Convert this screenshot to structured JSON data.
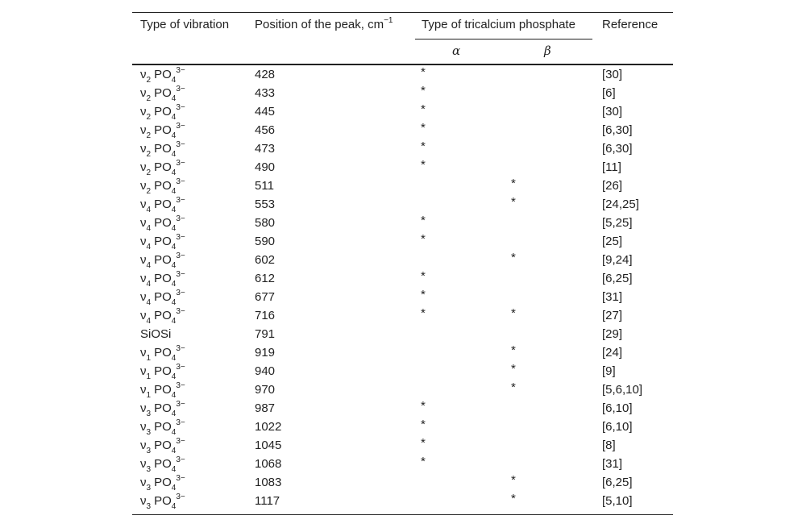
{
  "header": {
    "vibration": "Type of vibration",
    "position": {
      "text": "Position of the peak, cm",
      "sup": "−1"
    },
    "phosphate": "Type of tricalcium phosphate",
    "alpha": "α",
    "beta": "β",
    "reference": "Reference"
  },
  "table": {
    "rows": [
      {
        "vibration": [
          {
            "t": "ν"
          },
          {
            "t": "2",
            "pos": "sub"
          },
          {
            "t": "PO",
            "gap": true
          },
          {
            "t": "4",
            "pos": "sub"
          },
          {
            "t": "3−",
            "pos": "sup"
          }
        ],
        "peak": 428,
        "alpha": "*",
        "beta": null,
        "ref": "[30]"
      },
      {
        "vibration": [
          {
            "t": "ν"
          },
          {
            "t": "2",
            "pos": "sub"
          },
          {
            "t": "PO",
            "gap": true
          },
          {
            "t": "4",
            "pos": "sub"
          },
          {
            "t": "3−",
            "pos": "sup"
          }
        ],
        "peak": 433,
        "alpha": "*",
        "beta": null,
        "ref": "[6]"
      },
      {
        "vibration": [
          {
            "t": "ν"
          },
          {
            "t": "2",
            "pos": "sub"
          },
          {
            "t": "PO",
            "gap": true
          },
          {
            "t": "4",
            "pos": "sub"
          },
          {
            "t": "3−",
            "pos": "sup"
          }
        ],
        "peak": 445,
        "alpha": "*",
        "beta": null,
        "ref": "[30]"
      },
      {
        "vibration": [
          {
            "t": "ν"
          },
          {
            "t": "2",
            "pos": "sub"
          },
          {
            "t": "PO",
            "gap": true
          },
          {
            "t": "4",
            "pos": "sub"
          },
          {
            "t": "3−",
            "pos": "sup"
          }
        ],
        "peak": 456,
        "alpha": "*",
        "beta": null,
        "ref": "[6,30]"
      },
      {
        "vibration": [
          {
            "t": "ν"
          },
          {
            "t": "2",
            "pos": "sub"
          },
          {
            "t": "PO",
            "gap": true
          },
          {
            "t": "4",
            "pos": "sub"
          },
          {
            "t": "3−",
            "pos": "sup"
          }
        ],
        "peak": 473,
        "alpha": "*",
        "beta": null,
        "ref": "[6,30]"
      },
      {
        "vibration": [
          {
            "t": "ν"
          },
          {
            "t": "2",
            "pos": "sub"
          },
          {
            "t": "PO",
            "gap": true
          },
          {
            "t": "4",
            "pos": "sub"
          },
          {
            "t": "3−",
            "pos": "sup"
          }
        ],
        "peak": 490,
        "alpha": "*",
        "beta": null,
        "ref": "[11]"
      },
      {
        "vibration": [
          {
            "t": "ν"
          },
          {
            "t": "2",
            "pos": "sub"
          },
          {
            "t": "PO",
            "gap": true
          },
          {
            "t": "4",
            "pos": "sub"
          },
          {
            "t": "3−",
            "pos": "sup"
          }
        ],
        "peak": 511,
        "alpha": null,
        "beta": "*",
        "ref": "[26]"
      },
      {
        "vibration": [
          {
            "t": "ν"
          },
          {
            "t": "4",
            "pos": "sub"
          },
          {
            "t": "PO",
            "gap": true
          },
          {
            "t": "4",
            "pos": "sub"
          },
          {
            "t": "3−",
            "pos": "sup"
          }
        ],
        "peak": 553,
        "alpha": null,
        "beta": "*",
        "ref": "[24,25]"
      },
      {
        "vibration": [
          {
            "t": "ν"
          },
          {
            "t": "4",
            "pos": "sub"
          },
          {
            "t": "PO",
            "gap": true
          },
          {
            "t": "4",
            "pos": "sub"
          },
          {
            "t": "3−",
            "pos": "sup"
          }
        ],
        "peak": 580,
        "alpha": "*",
        "beta": null,
        "ref": "[5,25]"
      },
      {
        "vibration": [
          {
            "t": "ν"
          },
          {
            "t": "4",
            "pos": "sub"
          },
          {
            "t": "PO",
            "gap": true
          },
          {
            "t": "4",
            "pos": "sub"
          },
          {
            "t": "3−",
            "pos": "sup"
          }
        ],
        "peak": 590,
        "alpha": "*",
        "beta": null,
        "ref": "[25]"
      },
      {
        "vibration": [
          {
            "t": "ν"
          },
          {
            "t": "4",
            "pos": "sub"
          },
          {
            "t": "PO",
            "gap": true
          },
          {
            "t": "4",
            "pos": "sub"
          },
          {
            "t": "3−",
            "pos": "sup"
          }
        ],
        "peak": 602,
        "alpha": null,
        "beta": "*",
        "ref": "[9,24]"
      },
      {
        "vibration": [
          {
            "t": "ν"
          },
          {
            "t": "4",
            "pos": "sub"
          },
          {
            "t": "PO",
            "gap": true
          },
          {
            "t": "4",
            "pos": "sub"
          },
          {
            "t": "3−",
            "pos": "sup"
          }
        ],
        "peak": 612,
        "alpha": "*",
        "beta": null,
        "ref": "[6,25]"
      },
      {
        "vibration": [
          {
            "t": "ν"
          },
          {
            "t": "4",
            "pos": "sub"
          },
          {
            "t": "PO",
            "gap": true
          },
          {
            "t": "4",
            "pos": "sub"
          },
          {
            "t": "3−",
            "pos": "sup"
          }
        ],
        "peak": 677,
        "alpha": "*",
        "beta": null,
        "ref": "[31]"
      },
      {
        "vibration": [
          {
            "t": "ν"
          },
          {
            "t": "4",
            "pos": "sub"
          },
          {
            "t": "PO",
            "gap": true
          },
          {
            "t": "4",
            "pos": "sub"
          },
          {
            "t": "3−",
            "pos": "sup"
          }
        ],
        "peak": 716,
        "alpha": "*",
        "beta": "*",
        "ref": "[27]"
      },
      {
        "vibration": [
          {
            "t": "SiOSi"
          }
        ],
        "peak": 791,
        "alpha": null,
        "beta": null,
        "ref": "[29]"
      },
      {
        "vibration": [
          {
            "t": "ν"
          },
          {
            "t": "1",
            "pos": "sub"
          },
          {
            "t": "PO",
            "gap": true
          },
          {
            "t": "4",
            "pos": "sub"
          },
          {
            "t": "3−",
            "pos": "sup"
          }
        ],
        "peak": 919,
        "alpha": null,
        "beta": "*",
        "ref": "[24]"
      },
      {
        "vibration": [
          {
            "t": "ν"
          },
          {
            "t": "1",
            "pos": "sub"
          },
          {
            "t": "PO",
            "gap": true
          },
          {
            "t": "4",
            "pos": "sub"
          },
          {
            "t": "3−",
            "pos": "sup"
          }
        ],
        "peak": 940,
        "alpha": null,
        "beta": "*",
        "ref": "[9]"
      },
      {
        "vibration": [
          {
            "t": "ν"
          },
          {
            "t": "1",
            "pos": "sub"
          },
          {
            "t": "PO",
            "gap": true
          },
          {
            "t": "4",
            "pos": "sub"
          },
          {
            "t": "3−",
            "pos": "sup"
          }
        ],
        "peak": 970,
        "alpha": null,
        "beta": "*",
        "ref": "[5,6,10]"
      },
      {
        "vibration": [
          {
            "t": "ν"
          },
          {
            "t": "3",
            "pos": "sub"
          },
          {
            "t": "PO",
            "gap": true
          },
          {
            "t": "4",
            "pos": "sub"
          },
          {
            "t": "3−",
            "pos": "sup"
          }
        ],
        "peak": 987,
        "alpha": "*",
        "beta": null,
        "ref": "[6,10]"
      },
      {
        "vibration": [
          {
            "t": "ν"
          },
          {
            "t": "3",
            "pos": "sub"
          },
          {
            "t": "PO",
            "gap": true
          },
          {
            "t": "4",
            "pos": "sub"
          },
          {
            "t": "3−",
            "pos": "sup"
          }
        ],
        "peak": 1022,
        "alpha": "*",
        "beta": null,
        "ref": "[6,10]"
      },
      {
        "vibration": [
          {
            "t": "ν"
          },
          {
            "t": "3",
            "pos": "sub"
          },
          {
            "t": "PO",
            "gap": true
          },
          {
            "t": "4",
            "pos": "sub"
          },
          {
            "t": "3−",
            "pos": "sup"
          }
        ],
        "peak": 1045,
        "alpha": "*",
        "beta": null,
        "ref": "[8]"
      },
      {
        "vibration": [
          {
            "t": "ν"
          },
          {
            "t": "3",
            "pos": "sub"
          },
          {
            "t": "PO",
            "gap": true
          },
          {
            "t": "4",
            "pos": "sub"
          },
          {
            "t": "3−",
            "pos": "sup"
          }
        ],
        "peak": 1068,
        "alpha": "*",
        "beta": null,
        "ref": "[31]"
      },
      {
        "vibration": [
          {
            "t": "ν"
          },
          {
            "t": "3",
            "pos": "sub"
          },
          {
            "t": "PO",
            "gap": true
          },
          {
            "t": "4",
            "pos": "sub"
          },
          {
            "t": "3−",
            "pos": "sup"
          }
        ],
        "peak": 1083,
        "alpha": null,
        "beta": "*",
        "ref": "[6,25]"
      },
      {
        "vibration": [
          {
            "t": "ν"
          },
          {
            "t": "3",
            "pos": "sub"
          },
          {
            "t": "PO",
            "gap": true
          },
          {
            "t": "4",
            "pos": "sub"
          },
          {
            "t": "3−",
            "pos": "sup"
          }
        ],
        "peak": 1117,
        "alpha": null,
        "beta": "*",
        "ref": "[5,10]"
      }
    ]
  }
}
